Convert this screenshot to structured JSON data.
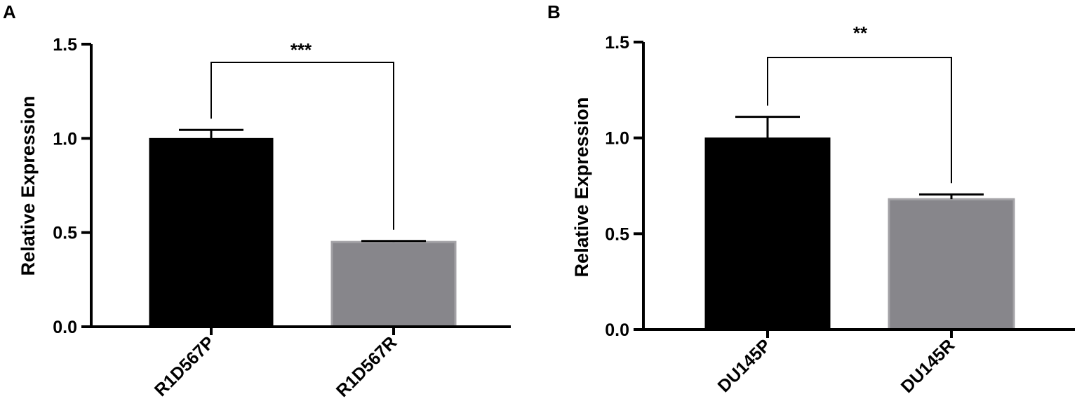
{
  "chart_data": [
    {
      "type": "bar",
      "panel_label": "A",
      "categories": [
        "R1D567P",
        "R1D567R"
      ],
      "values": [
        1.0,
        0.45
      ],
      "errors": [
        0.045,
        0.005
      ],
      "bar_colors": [
        "#000000",
        "#87868b"
      ],
      "ylabel": "Relative Expression",
      "ylim": [
        0,
        1.5
      ],
      "yticks": [
        "0.0",
        "0.5",
        "1.0",
        "1.5"
      ],
      "significance": "***",
      "grid": false
    },
    {
      "type": "bar",
      "panel_label": "B",
      "categories": [
        "DU145P",
        "DU145R"
      ],
      "values": [
        1.0,
        0.68
      ],
      "errors": [
        0.11,
        0.025
      ],
      "bar_colors": [
        "#000000",
        "#87868b"
      ],
      "ylabel": "Relative Expression",
      "ylim": [
        0,
        1.5
      ],
      "yticks": [
        "0.0",
        "0.5",
        "1.0",
        "1.5"
      ],
      "significance": "**",
      "grid": false
    }
  ]
}
